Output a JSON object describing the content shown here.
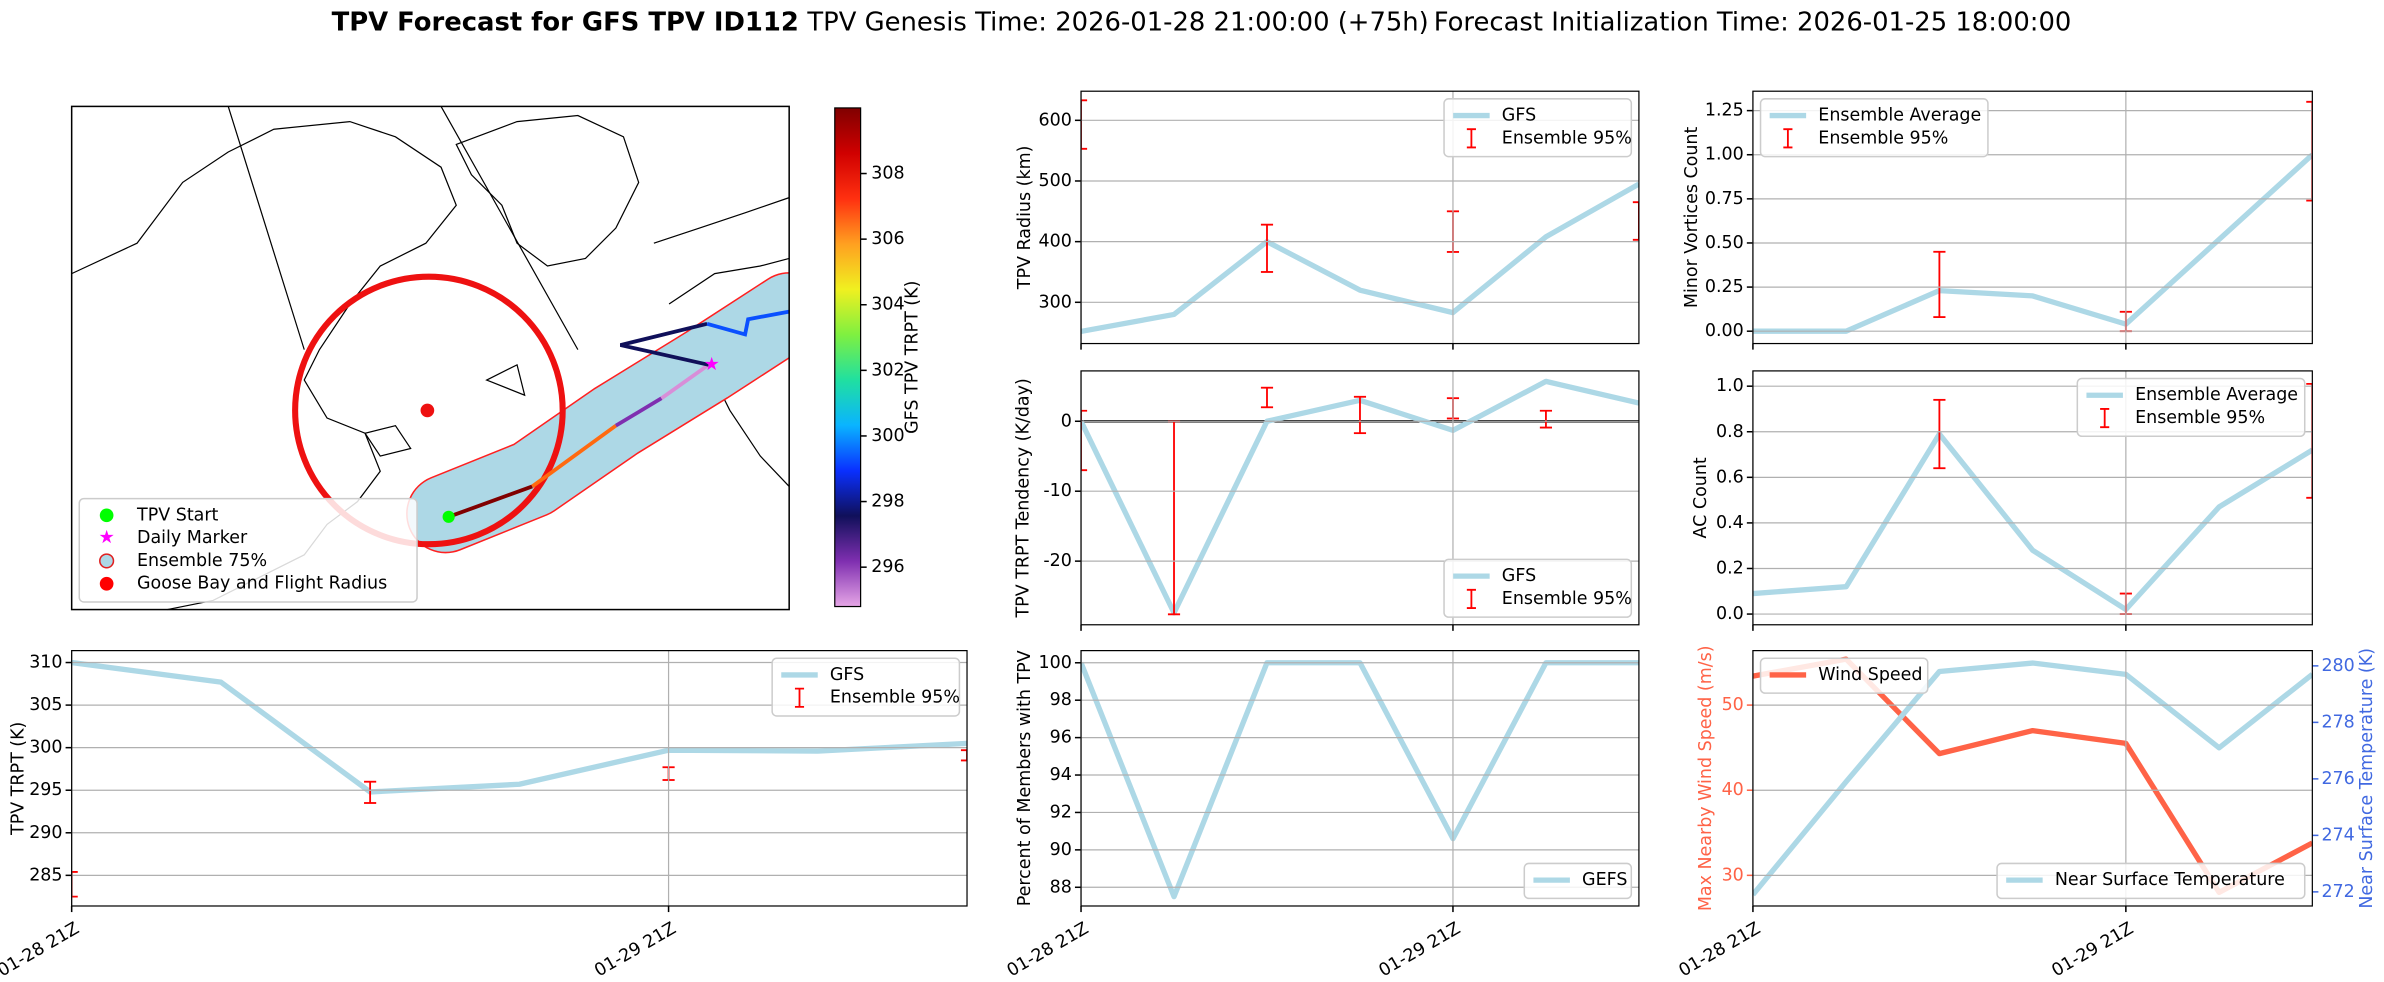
{
  "figure": {
    "title": "TPV Forecast for GFS TPV ID112",
    "genesis": "TPV Genesis Time: 2026-01-28 21:00:00 (+75h)",
    "init": "Forecast Initialization Time: 2026-01-25 18:00:00"
  },
  "chart_data": [
    {
      "type": "map",
      "legend": "lower left",
      "legend_entries": [
        {
          "name": "TPV Start",
          "color": "#00ff00",
          "marker": "circle"
        },
        {
          "name": "Daily Marker",
          "color": "#ff00ff",
          "marker": "star"
        },
        {
          "name": "Ensemble 75%",
          "color": "#add8e6",
          "marker": "ring"
        },
        {
          "name": "Goose Bay and Flight Radius",
          "color": "#ff0000",
          "marker": "circle"
        }
      ],
      "colorbar": {
        "label": "GFS TPV TRPT (K)",
        "clim": [
          294.8,
          310.0
        ],
        "ticks": [
          296,
          298,
          300,
          302,
          304,
          306,
          308
        ],
        "colormap": [
          "#e6a6e6",
          "#7f2fb0",
          "#10105a",
          "#0a30ff",
          "#0ab4ff",
          "#20e0a0",
          "#7ff040",
          "#f0f020",
          "#ffa020",
          "#ff3010",
          "#d00000",
          "#800000"
        ]
      }
    },
    {
      "type": "line",
      "ylabel": "TPV Radius (km)",
      "ylim": [
        232,
        648
      ],
      "yticks": [
        300,
        400,
        500,
        600
      ],
      "grid": true,
      "legend": "upper right",
      "series": [
        {
          "name": "GFS",
          "color": "#add8e6",
          "values": [
            252,
            280,
            400,
            320,
            283,
            408,
            495
          ]
        }
      ],
      "errorbars": {
        "name": "Ensemble 95%",
        "color": "#ff0000",
        "low": [
          553,
          null,
          350,
          null,
          383,
          null,
          403
        ],
        "high": [
          633,
          null,
          428,
          null,
          450,
          null,
          465
        ]
      }
    },
    {
      "type": "line",
      "ylabel": "Minor Vortices Count",
      "ylim": [
        -0.07,
        1.36
      ],
      "yticks": [
        {
          "value": 0,
          "label": "0.00"
        },
        0.25,
        {
          "value": 0.5,
          "label": "0.50"
        },
        0.75,
        {
          "value": 1,
          "label": "1.00"
        },
        1.25
      ],
      "grid": true,
      "legend": "upper left",
      "series": [
        {
          "name": "Ensemble Average",
          "color": "#add8e6",
          "values": [
            0,
            0,
            0.23,
            0.2,
            0.04,
            0.52,
            1.0
          ]
        }
      ],
      "errorbars": {
        "name": "Ensemble 95%",
        "color": "#ff0000",
        "low": [
          null,
          null,
          0.08,
          null,
          0.0,
          null,
          0.74
        ],
        "high": [
          null,
          null,
          0.45,
          null,
          0.11,
          null,
          1.3
        ]
      }
    },
    {
      "type": "line",
      "ylabel": "TPV TRPT Tendency (K/day)",
      "ylim": [
        -29.1,
        7.2
      ],
      "yticks": [
        -20,
        -10,
        0
      ],
      "grid": true,
      "legend": "lower right",
      "hline": 0,
      "series": [
        {
          "name": "GFS",
          "color": "#add8e6",
          "values": [
            0,
            -27.4,
            0,
            3,
            -1.3,
            5.7,
            2.6
          ]
        }
      ],
      "errorbars": {
        "name": "Ensemble 95%",
        "color": "#ff0000",
        "low": [
          -7,
          -27.6,
          2,
          -1.7,
          0.4,
          -0.9,
          null
        ],
        "high": [
          1.5,
          0,
          4.8,
          3.5,
          3.3,
          1.5,
          null
        ]
      }
    },
    {
      "type": "line",
      "ylabel": "AC Count",
      "ylim": [
        -0.047,
        1.067
      ],
      "yticks": [
        {
          "value": 0,
          "label": "0.0"
        },
        0.2,
        0.4,
        0.6,
        0.8,
        {
          "value": 1,
          "label": "1.0"
        }
      ],
      "grid": true,
      "legend": "upper right",
      "series": [
        {
          "name": "Ensemble Average",
          "color": "#add8e6",
          "values": [
            0.09,
            0.12,
            0.79,
            0.28,
            0.02,
            0.47,
            0.72
          ]
        }
      ],
      "errorbars": {
        "name": "Ensemble 95%",
        "color": "#ff0000",
        "low": [
          null,
          null,
          0.64,
          null,
          0.0,
          null,
          0.51
        ],
        "high": [
          null,
          null,
          0.94,
          null,
          0.09,
          null,
          1.01
        ]
      }
    },
    {
      "type": "line",
      "ylabel": "TPV TRPT (K)",
      "ylim": [
        281.4,
        311.4
      ],
      "yticks": [
        285,
        290,
        295,
        300,
        305,
        310
      ],
      "grid": true,
      "legend": "upper right",
      "categories": [
        "01-28 21Z",
        null,
        null,
        null,
        "01-29 21Z",
        null,
        null
      ],
      "series": [
        {
          "name": "GFS",
          "color": "#add8e6",
          "values": [
            310,
            307.7,
            294.8,
            295.7,
            299.7,
            299.6,
            300.5
          ]
        }
      ],
      "errorbars": {
        "name": "Ensemble 95%",
        "color": "#ff0000",
        "low": [
          282.5,
          null,
          293.5,
          null,
          296.2,
          null,
          298.5
        ],
        "high": [
          285.4,
          null,
          296,
          null,
          297.7,
          null,
          299.7
        ]
      }
    },
    {
      "type": "line",
      "ylabel": "Percent of Members with TPV",
      "ylim": [
        87.0,
        100.65
      ],
      "yticks": [
        88,
        90,
        92,
        94,
        96,
        98,
        100
      ],
      "grid": true,
      "legend": "lower right",
      "categories": [
        "01-28 21Z",
        null,
        null,
        null,
        "01-29 21Z",
        null,
        null
      ],
      "series": [
        {
          "name": "GEFS",
          "color": "#add8e6",
          "values": [
            100,
            87.5,
            100,
            100,
            90.6,
            100,
            100
          ]
        }
      ]
    },
    {
      "type": "line",
      "ylabel": "Max Nearby Wind Speed (m/s)",
      "ylabel_color": "#ff6347",
      "ylim": [
        26.4,
        56.4
      ],
      "yticks": [
        30,
        40,
        50
      ],
      "grid": true,
      "y2label": "Near Surface Temperature (K)",
      "y2label_color": "#4169e1",
      "y2lim": [
        271.5,
        280.54
      ],
      "y2ticks": [
        272,
        274,
        276,
        278,
        280
      ],
      "categories": [
        "01-28 21Z",
        null,
        null,
        null,
        "01-29 21Z",
        null,
        null
      ],
      "series": [
        {
          "name": "Wind Speed",
          "color": "#ff6347",
          "legend": "upper left",
          "values": [
            53.4,
            55.4,
            44.3,
            47.0,
            45.5,
            28,
            33.8
          ]
        },
        {
          "name": "Near Surface Temperature",
          "color": "#add8e6",
          "axis": "y2",
          "legend": "lower right",
          "values": [
            271.9,
            275.9,
            279.8,
            280.1,
            279.7,
            277.1,
            279.7
          ]
        }
      ]
    }
  ]
}
